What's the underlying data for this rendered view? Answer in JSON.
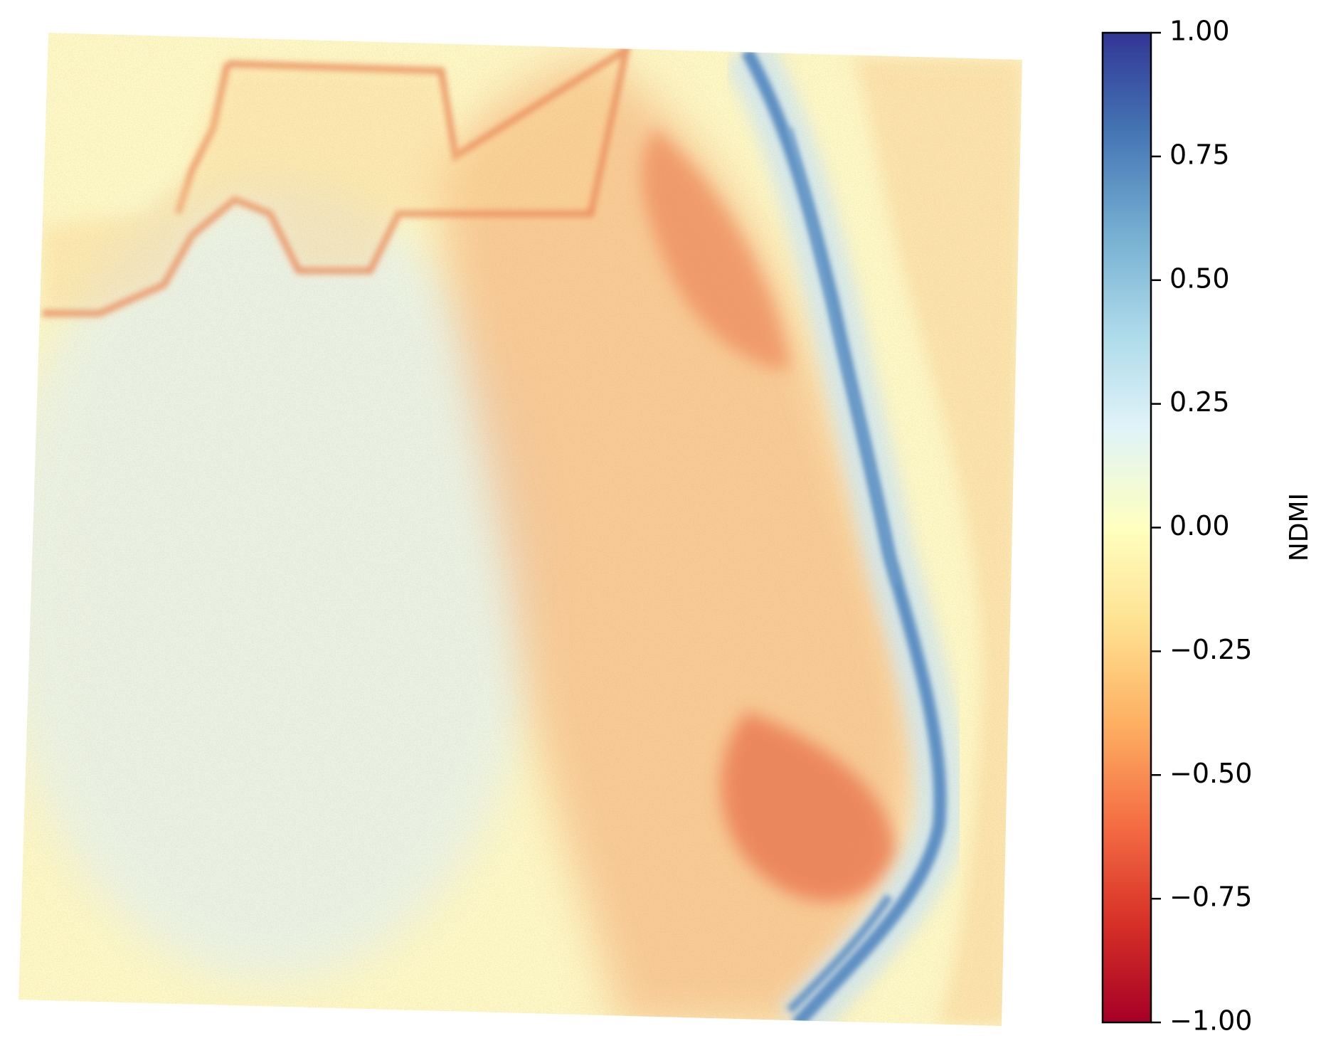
{
  "chart_data": {
    "type": "heatmap",
    "title": "",
    "xlabel": "",
    "ylabel": "",
    "axes_visible": false,
    "colormap": "RdYlBu",
    "vmin": -1.0,
    "vmax": 1.0,
    "colorbar": {
      "label": "NDMI",
      "placement": "right",
      "ticks": [
        1.0,
        0.75,
        0.5,
        0.25,
        0.0,
        -0.25,
        -0.5,
        -0.75,
        -1.0
      ],
      "tick_labels": [
        "1.00",
        "0.75",
        "0.50",
        "0.25",
        "0.00",
        "−0.25",
        "−0.50",
        "−0.75",
        "−1.00"
      ],
      "colors": [
        "#a50026",
        "#d73027",
        "#f46d43",
        "#fdae61",
        "#fee090",
        "#ffffbf",
        "#e0f3f8",
        "#abd9e9",
        "#74add1",
        "#4575b4",
        "#313695"
      ]
    },
    "regions": [
      {
        "name": "left field",
        "ndmi_approx": 0.05
      },
      {
        "name": "central bare slope",
        "ndmi_approx": -0.4
      },
      {
        "name": "river channel",
        "ndmi_approx": 0.6
      },
      {
        "name": "right bank",
        "ndmi_approx": -0.1
      }
    ]
  }
}
